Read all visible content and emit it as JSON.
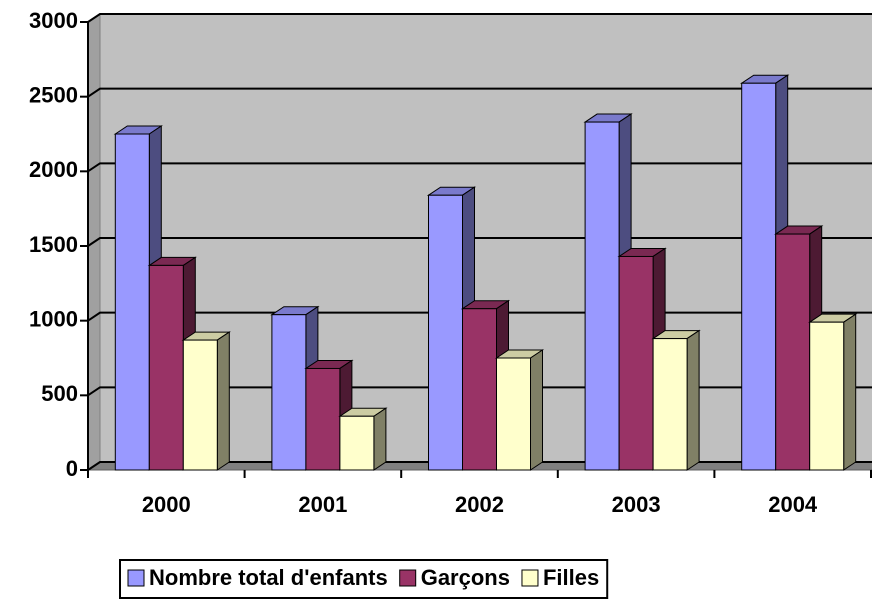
{
  "chart_data": {
    "type": "bar3d",
    "categories": [
      "2000",
      "2001",
      "2002",
      "2003",
      "2004"
    ],
    "series": [
      {
        "name": "Nombre total d'enfants",
        "color": "#9999ff",
        "values": [
          2250,
          1040,
          1840,
          2330,
          2590
        ]
      },
      {
        "name": "Garçons",
        "color": "#993366",
        "values": [
          1370,
          680,
          1080,
          1430,
          1580
        ]
      },
      {
        "name": "Filles",
        "color": "#ffffcc",
        "values": [
          870,
          360,
          750,
          880,
          990
        ]
      }
    ],
    "ylim": [
      0,
      3000
    ],
    "yticks": [
      0,
      500,
      1000,
      1500,
      2000,
      2500,
      3000
    ],
    "grid": true,
    "legend": "bottom"
  }
}
